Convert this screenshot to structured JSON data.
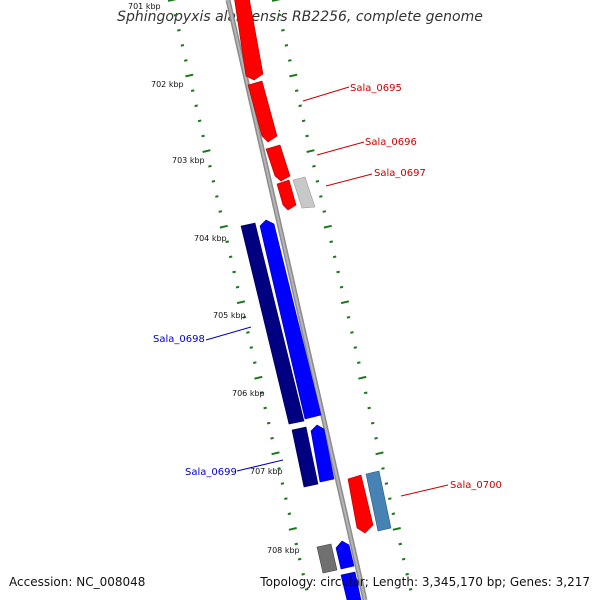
{
  "title": "Sphingopyxis alaskensis RB2256, complete genome",
  "footer": {
    "accession_label": "Accession:",
    "accession": "NC_008048",
    "topology_label": "Topology:",
    "topology": "circular;",
    "length_label": "Length:",
    "length": "3,345,170 bp;",
    "genes_label": "Genes:",
    "genes": "3,217"
  },
  "scale_labels": [
    "701 kbp",
    "702 kbp",
    "703 kbp",
    "704 kbp",
    "705 kbp",
    "706 kbp",
    "707 kbp",
    "708 kbp"
  ],
  "gene_labels": [
    {
      "name": "Sala_0695",
      "strand": "forward",
      "color": "#cc0000"
    },
    {
      "name": "Sala_0696",
      "strand": "forward",
      "color": "#cc0000"
    },
    {
      "name": "Sala_0697",
      "strand": "forward",
      "color": "#cc0000"
    },
    {
      "name": "Sala_0698",
      "strand": "forward",
      "color": "#0000cc"
    },
    {
      "name": "Sala_0699",
      "strand": "forward",
      "color": "#0000cc"
    },
    {
      "name": "Sala_0700",
      "strand": "forward",
      "color": "#cc0000"
    }
  ],
  "colors": {
    "backbone": "#8c8c8c",
    "tick": "#1a7a1a",
    "red": "#ff0000",
    "blue": "#0000ff",
    "navy": "#000080",
    "steelblue": "#4682b4",
    "gray": "#c8c8c8",
    "darkgray": "#707070"
  }
}
